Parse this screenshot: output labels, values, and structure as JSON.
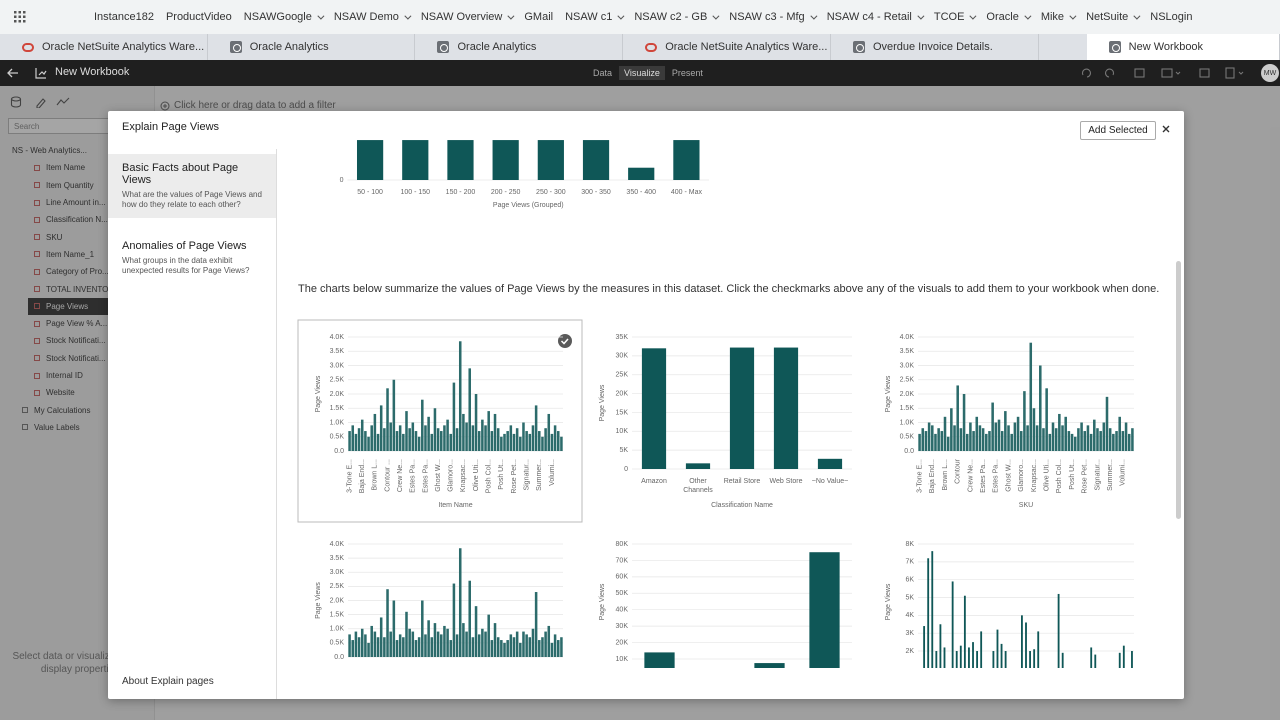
{
  "bookmarks": [
    {
      "label": "Instance182",
      "menu": false
    },
    {
      "label": "ProductVideo",
      "menu": false
    },
    {
      "label": "NSAWGoogle",
      "menu": true
    },
    {
      "label": "NSAW Demo",
      "menu": true
    },
    {
      "label": "NSAW Overview",
      "menu": true
    },
    {
      "label": "GMail",
      "menu": false
    },
    {
      "label": "NSAW c1",
      "menu": true
    },
    {
      "label": "NSAW c2 - GB",
      "menu": true
    },
    {
      "label": "NSAW c3 - Mfg",
      "menu": true
    },
    {
      "label": "NSAW c4 - Retail",
      "menu": true
    },
    {
      "label": "TCOE",
      "menu": true
    },
    {
      "label": "Oracle",
      "menu": true
    },
    {
      "label": "Mike",
      "menu": true
    },
    {
      "label": "NetSuite",
      "menu": true
    },
    {
      "label": "NSLogin",
      "menu": false
    }
  ],
  "tabs": [
    {
      "title": "Oracle NetSuite Analytics Ware...",
      "icon": "ring",
      "active": false
    },
    {
      "title": "Oracle Analytics",
      "icon": "square",
      "active": false
    },
    {
      "title": "Oracle Analytics",
      "icon": "square",
      "active": false
    },
    {
      "title": "Oracle NetSuite Analytics Ware...",
      "icon": "ring",
      "active": false
    },
    {
      "title": "Overdue Invoice Details.",
      "icon": "square",
      "active": false
    },
    {
      "title": "New Workbook",
      "icon": "square",
      "active": true
    }
  ],
  "app": {
    "title": "New Workbook",
    "modes": [
      "Data",
      "Visualize",
      "Present"
    ],
    "user": "MW"
  },
  "filter_hint": "Click here or drag data to add a filter",
  "data_panel": {
    "search": "Search",
    "source": "NS - Web Analytics...",
    "fields": [
      "Item Name",
      "Item Quantity",
      "Line Amount in...",
      "Classification N...",
      "SKU",
      "Item Name_1",
      "Category of Pro...",
      "TOTAL INVENTO...",
      "Page Views",
      "Page View % A...",
      "Stock Notificati...",
      "Stock Notificati...",
      "Internal ID",
      "Website"
    ],
    "selected_field": 8,
    "extras": [
      "My Calculations",
      "Value Labels"
    ],
    "hint": "Select data or visualizations to display properties"
  },
  "dialog": {
    "title": "Explain Page Views",
    "add_button": "Add Selected",
    "nav": [
      {
        "title": "Basic Facts about Page Views",
        "desc": "What are the values of Page Views and how do they relate to each other?"
      },
      {
        "title": "Anomalies of Page Views",
        "desc": "What groups in the data exhibit unexpected results for Page Views?"
      }
    ],
    "about": "About Explain pages",
    "summary": "The charts below summarize the values of Page Views by the measures in this dataset. Click the checkmarks above any of the visuals to add them to your workbook when done."
  },
  "chart_data": [
    {
      "type": "bar",
      "x_label": "Page Views (Grouped)",
      "categories": [
        "50 - 100",
        "100 - 150",
        "150 - 200",
        "200 - 250",
        "250 - 300",
        "300 - 350",
        "350 - 400",
        "400 - Max"
      ],
      "values": [
        13,
        13,
        13,
        13,
        13,
        13,
        4,
        13
      ],
      "color": "#0f5757",
      "ylim": [
        0,
        14
      ],
      "yticks": [
        0
      ],
      "grid": true
    },
    {
      "type": "bar",
      "x_label": "Item Name",
      "y_label": "Page Views",
      "selected": true,
      "color": "#2c6b6b",
      "categories": [
        "3-Tone E...",
        null,
        null,
        null,
        "Baja End...",
        null,
        null,
        null,
        "Brown L...",
        null,
        null,
        null,
        "Contour ...",
        null,
        null,
        null,
        "Crew Ne...",
        null,
        null,
        null,
        "Estes Pa...",
        null,
        null,
        null,
        "Estes Pa...",
        null,
        null,
        null,
        "Ghost W...",
        null,
        null,
        null,
        "Glamoro...",
        null,
        null,
        null,
        "Knapsac...",
        null,
        null,
        null,
        "Olive Uti...",
        null,
        null,
        null,
        "Posh Col...",
        null,
        null,
        null,
        "Posh Ut...",
        null,
        null,
        null,
        "Rose Pet...",
        null,
        null,
        null,
        "Signatur...",
        null,
        null,
        null,
        "Summer...",
        null,
        null,
        null,
        "Volumi...",
        null,
        null,
        null
      ],
      "values": [
        700,
        900,
        600,
        800,
        1100,
        700,
        500,
        900,
        1300,
        600,
        1600,
        800,
        2200,
        1000,
        2500,
        700,
        900,
        600,
        1400,
        800,
        1000,
        700,
        500,
        1800,
        900,
        1200,
        600,
        1500,
        800,
        700,
        900,
        1100,
        600,
        2400,
        800,
        3850,
        1300,
        1000,
        2900,
        900,
        2000,
        700,
        1100,
        900,
        1400,
        700,
        1300,
        800,
        500,
        600,
        700,
        900,
        600,
        800,
        500,
        1000,
        700,
        600,
        900,
        1600,
        700,
        500,
        800,
        1300,
        600,
        900,
        700,
        500
      ],
      "ylim": [
        0,
        4000
      ],
      "yticks": [
        {
          "value": 0,
          "label": "0.0"
        },
        {
          "value": 500,
          "label": "0.5K"
        },
        {
          "value": 1000,
          "label": "1.0K"
        },
        {
          "value": 1500,
          "label": "1.5K"
        },
        {
          "value": 2000,
          "label": "2.0K"
        },
        {
          "value": 2500,
          "label": "2.5K"
        },
        {
          "value": 3000,
          "label": "3.0K"
        },
        {
          "value": 3500,
          "label": "3.5K"
        },
        {
          "value": 4000,
          "label": "4.0K"
        }
      ],
      "grid": true
    },
    {
      "type": "bar",
      "x_label": "Classification Name",
      "y_label": "Page Views",
      "color": "#0f5757",
      "categories": [
        "Amazon",
        "Other Channels",
        "Retail Store",
        "Web Store",
        "~No Value~"
      ],
      "values": [
        32000,
        1500,
        32200,
        32200,
        2700
      ],
      "ylim": [
        0,
        35000
      ],
      "yticks": [
        0,
        {
          "value": 5000,
          "label": "5K"
        },
        {
          "value": 10000,
          "label": "10K"
        },
        {
          "value": 15000,
          "label": "15K"
        },
        {
          "value": 20000,
          "label": "20K"
        },
        {
          "value": 25000,
          "label": "25K"
        },
        {
          "value": 30000,
          "label": "30K"
        },
        {
          "value": 35000,
          "label": "35K"
        }
      ],
      "grid": true
    },
    {
      "type": "bar",
      "x_label": "SKU",
      "y_label": "Page Views",
      "color": "#2c6b6b",
      "categories": [
        "3-Tone E...",
        null,
        null,
        null,
        "Baja End...",
        null,
        null,
        null,
        "Brown L...",
        null,
        null,
        null,
        "Contour",
        null,
        null,
        null,
        "Crew Ne...",
        null,
        null,
        null,
        "Estes Pa...",
        null,
        null,
        null,
        "Estes Pa...",
        null,
        null,
        null,
        "Ghost W...",
        null,
        null,
        null,
        "Glamoro...",
        null,
        null,
        null,
        "Knapsac...",
        null,
        null,
        null,
        "Olive Uti...",
        null,
        null,
        null,
        "Posh Col...",
        null,
        null,
        null,
        "Posh Ut...",
        null,
        null,
        null,
        "Rose Pet...",
        null,
        null,
        null,
        "Signatur...",
        null,
        null,
        null,
        "Summer...",
        null,
        null,
        null,
        "Volumi...",
        null,
        null,
        null
      ],
      "values": [
        600,
        800,
        700,
        1000,
        900,
        600,
        800,
        700,
        1200,
        500,
        1500,
        900,
        2300,
        800,
        2000,
        600,
        1000,
        700,
        1200,
        900,
        800,
        600,
        700,
        1700,
        1000,
        1100,
        700,
        1400,
        900,
        600,
        1000,
        1200,
        700,
        2100,
        900,
        3800,
        1500,
        900,
        3000,
        800,
        2200,
        600,
        1000,
        800,
        1300,
        900,
        1200,
        700,
        600,
        500,
        800,
        1000,
        700,
        900,
        600,
        1100,
        800,
        700,
        1000,
        1900,
        800,
        600,
        700,
        1200,
        700,
        1000,
        600,
        800
      ],
      "ylim": [
        0,
        4000
      ],
      "yticks": [
        {
          "value": 0,
          "label": "0.0"
        },
        {
          "value": 500,
          "label": "0.5K"
        },
        {
          "value": 1000,
          "label": "1.0K"
        },
        {
          "value": 1500,
          "label": "1.5K"
        },
        {
          "value": 2000,
          "label": "2.0K"
        },
        {
          "value": 2500,
          "label": "2.5K"
        },
        {
          "value": 3000,
          "label": "3.0K"
        },
        {
          "value": 3500,
          "label": "3.5K"
        },
        {
          "value": 4000,
          "label": "4.0K"
        }
      ],
      "grid": true
    },
    {
      "type": "bar",
      "y_label": "Page Views",
      "color": "#2c6b6b",
      "values": [
        800,
        600,
        900,
        700,
        1000,
        800,
        500,
        1100,
        900,
        700,
        1400,
        700,
        2400,
        900,
        2000,
        600,
        800,
        700,
        1600,
        1000,
        900,
        600,
        700,
        2000,
        800,
        1300,
        700,
        1200,
        900,
        800,
        1100,
        1000,
        600,
        2600,
        800,
        3850,
        1200,
        900,
        2700,
        700,
        1800,
        800,
        1000,
        900,
        1500,
        600,
        1200,
        700,
        600,
        500,
        600,
        800,
        700,
        900,
        500,
        900,
        800,
        700,
        1000,
        2300,
        600,
        700,
        900,
        1100,
        500,
        800,
        600,
        700
      ],
      "ylim": [
        0,
        4000
      ],
      "yticks": [
        {
          "value": 0,
          "label": "0.0"
        },
        {
          "value": 500,
          "label": "0.5K"
        },
        {
          "value": 1000,
          "label": "1.0K"
        },
        {
          "value": 1500,
          "label": "1.5K"
        },
        {
          "value": 2000,
          "label": "2.0K"
        },
        {
          "value": 2500,
          "label": "2.5K"
        },
        {
          "value": 3000,
          "label": "3.0K"
        },
        {
          "value": 3500,
          "label": "3.5K"
        },
        {
          "value": 4000,
          "label": "4.0K"
        }
      ],
      "grid": true
    },
    {
      "type": "bar",
      "y_label": "Page Views",
      "color": "#0f5757",
      "categories": [
        null,
        null,
        null,
        null
      ],
      "values": [
        14000,
        null,
        7500,
        75000
      ],
      "ylim": [
        0,
        80000
      ],
      "yticks": [
        {
          "value": 10000,
          "label": "10K"
        },
        {
          "value": 20000,
          "label": "20K"
        },
        {
          "value": 30000,
          "label": "30K"
        },
        {
          "value": 40000,
          "label": "40K"
        },
        {
          "value": 50000,
          "label": "50K"
        },
        {
          "value": 60000,
          "label": "60K"
        },
        {
          "value": 70000,
          "label": "70K"
        },
        {
          "value": 80000,
          "label": "80K"
        }
      ],
      "grid": true
    },
    {
      "type": "bar",
      "y_label": "Page Views",
      "color": "#0f5757",
      "values": [
        0,
        3400,
        7200,
        7600,
        2000,
        3500,
        2200,
        0,
        5900,
        2000,
        2300,
        5100,
        2200,
        2500,
        2000,
        3100,
        0,
        0,
        2000,
        3200,
        2400,
        2000,
        0,
        0,
        0,
        4000,
        3600,
        2000,
        2100,
        3100,
        0,
        0,
        0,
        0,
        5200,
        1900,
        0,
        0,
        0,
        0,
        0,
        0,
        2200,
        1800,
        0,
        0,
        0,
        0,
        0,
        1900,
        2300,
        0,
        2000
      ],
      "ylim": [
        0,
        8000
      ],
      "yticks": [
        {
          "value": 2000,
          "label": "2K"
        },
        {
          "value": 3000,
          "label": "3K"
        },
        {
          "value": 4000,
          "label": "4K"
        },
        {
          "value": 5000,
          "label": "5K"
        },
        {
          "value": 6000,
          "label": "6K"
        },
        {
          "value": 7000,
          "label": "7K"
        },
        {
          "value": 8000,
          "label": "8K"
        }
      ],
      "grid": true
    }
  ]
}
